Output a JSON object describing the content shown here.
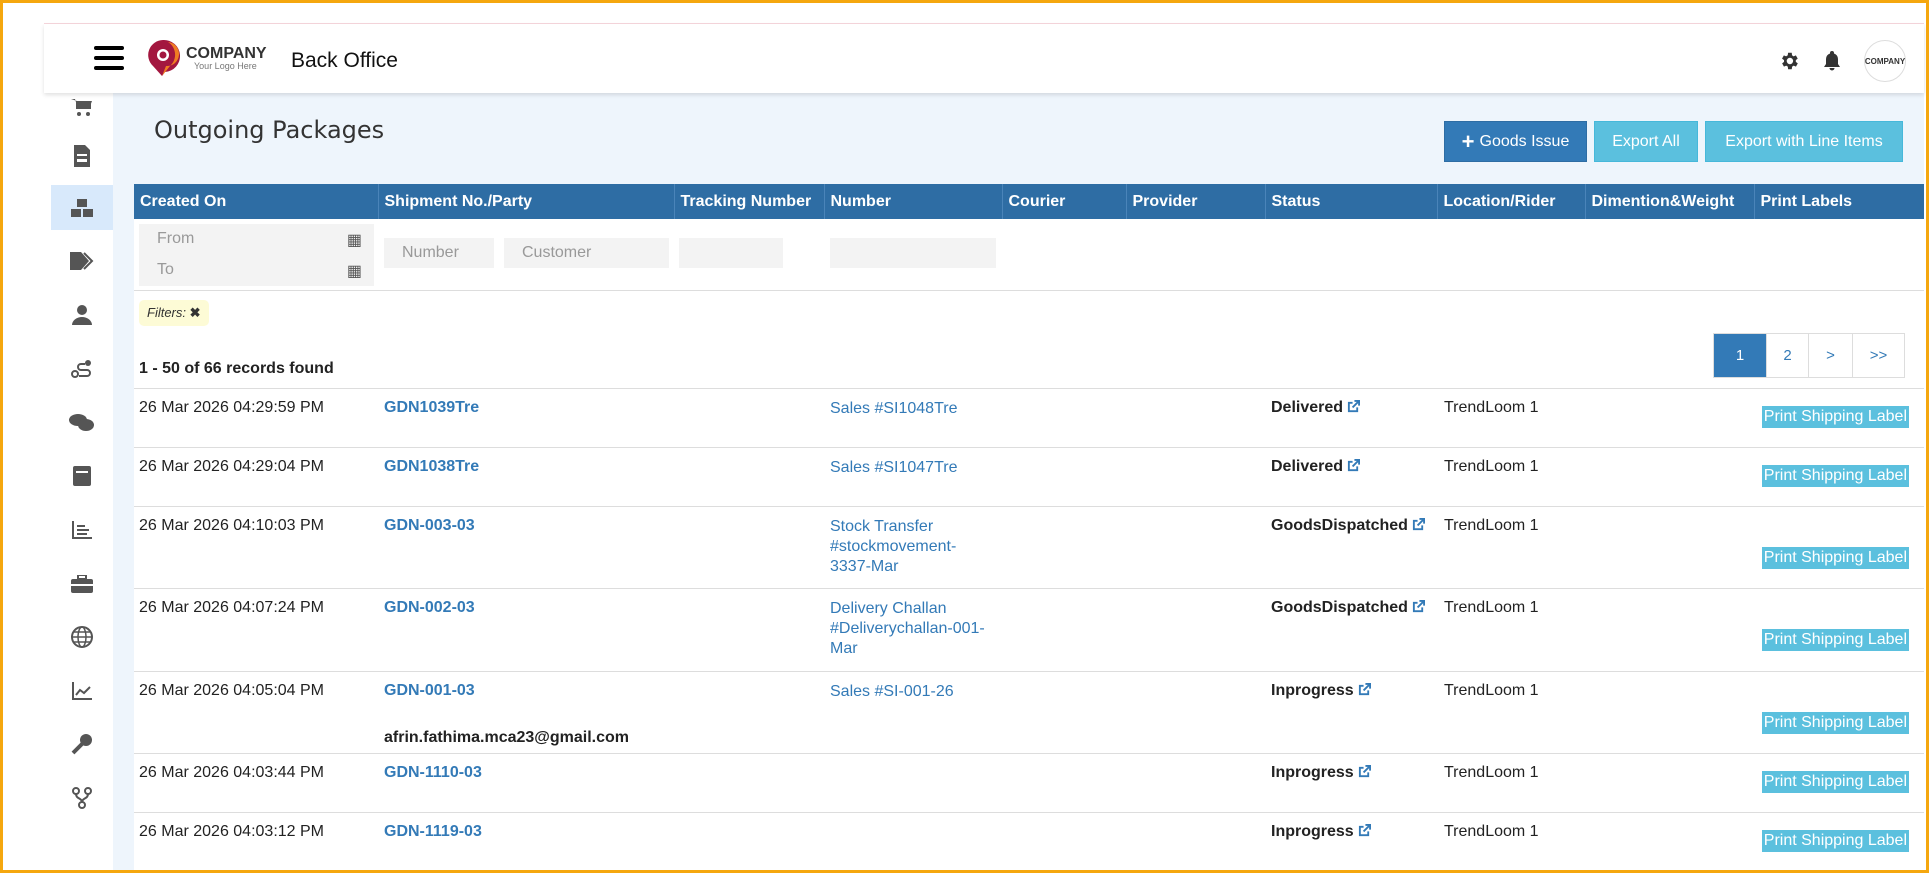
{
  "header": {
    "logo_company": "COMPANY",
    "logo_tagline": "Your Logo Here",
    "app_name": "Back Office",
    "avatar_text": "COMPANY"
  },
  "sidebar": {
    "items": [
      "cart",
      "document",
      "packages",
      "tags",
      "user",
      "route",
      "chat",
      "book",
      "report",
      "toolbox",
      "globe",
      "chart",
      "key",
      "workflow"
    ],
    "active": "packages"
  },
  "page": {
    "title": "Outgoing Packages"
  },
  "buttons": {
    "goods_issue": "Goods Issue",
    "export_all": "Export All",
    "export_line_items": "Export with Line Items"
  },
  "table": {
    "columns": [
      "Created On",
      "Shipment No./Party",
      "Tracking Number",
      "Number",
      "Courier",
      "Provider",
      "Status",
      "Location/Rider",
      "Dimention&Weight",
      "Print Labels"
    ],
    "filters": {
      "from": "From",
      "to": "To",
      "number": "Number",
      "customer": "Customer"
    },
    "filters_label": "Filters:",
    "records": "1 - 50 of 66 records found",
    "pagination": [
      "1",
      "2",
      ">",
      ">>"
    ],
    "current_page": "1",
    "print_label": "Print Shipping Label",
    "rows": [
      {
        "created": "26 Mar 2026 04:29:59 PM",
        "shipment": "GDN1039Tre",
        "party": "",
        "number": [
          "Sales #SI1048Tre"
        ],
        "status": "Delivered",
        "location": "TrendLoom 1"
      },
      {
        "created": "26 Mar 2026 04:29:04 PM",
        "shipment": "GDN1038Tre",
        "party": "",
        "number": [
          "Sales #SI1047Tre"
        ],
        "status": "Delivered",
        "location": "TrendLoom 1"
      },
      {
        "created": "26 Mar 2026 04:10:03 PM",
        "shipment": "GDN-003-03",
        "party": "",
        "number": [
          "Stock Transfer",
          "#stockmovement-",
          "3337-Mar"
        ],
        "status": "GoodsDispatched",
        "location": "TrendLoom 1"
      },
      {
        "created": "26 Mar 2026 04:07:24 PM",
        "shipment": "GDN-002-03",
        "party": "",
        "number": [
          "Delivery Challan",
          "#Deliverychallan-001-",
          "Mar"
        ],
        "status": "GoodsDispatched",
        "location": "TrendLoom 1"
      },
      {
        "created": "26 Mar 2026 04:05:04 PM",
        "shipment": "GDN-001-03",
        "party": "afrin.fathima.mca23@gmail.com",
        "number": [
          "Sales #SI-001-26"
        ],
        "status": "Inprogress",
        "location": "TrendLoom 1"
      },
      {
        "created": "26 Mar 2026 04:03:44 PM",
        "shipment": "GDN-1110-03",
        "party": "",
        "number": [],
        "status": "Inprogress",
        "location": "TrendLoom 1"
      },
      {
        "created": "26 Mar 2026 04:03:12 PM",
        "shipment": "GDN-1119-03",
        "party": "",
        "number": [],
        "status": "Inprogress",
        "location": "TrendLoom 1"
      }
    ]
  },
  "colors": {
    "primary": "#337ab7",
    "info": "#5bc0de",
    "header_bg": "#2e6da4",
    "content_bg": "#eef5fc",
    "frame": "#f5a70f"
  }
}
